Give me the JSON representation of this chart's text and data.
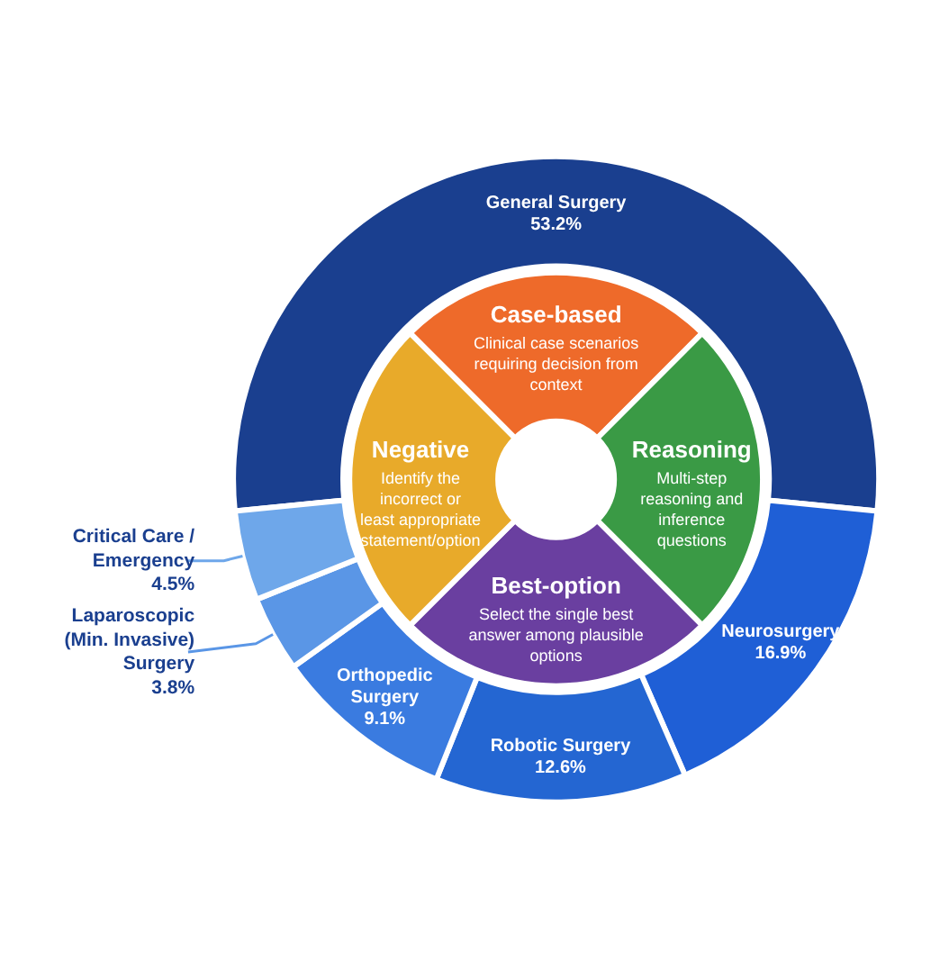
{
  "chart_data": [
    {
      "type": "donut",
      "categories": [
        "General Surgery",
        "Neurosurgery",
        "Robotic Surgery",
        "Orthopedic Surgery",
        "Laparoscopic (Min. Invasive) Surgery",
        "Critical Care / Emergency"
      ],
      "values": [
        53.2,
        16.9,
        12.6,
        9.1,
        3.8,
        4.5
      ],
      "value_labels": [
        "53.2%",
        "16.9%",
        "12.6%",
        "9.1%",
        "3.8%",
        "4.5%"
      ],
      "colors": [
        "#1a3f8f",
        "#1f5fd6",
        "#2466d2",
        "#3a7be0",
        "#5a96e6",
        "#6ea7ea"
      ]
    },
    {
      "type": "donut",
      "categories": [
        "Case-based",
        "Reasoning",
        "Best-option",
        "Negative"
      ],
      "values": [
        25,
        25,
        25,
        25
      ],
      "colors": [
        "#ee6a2a",
        "#3a9a45",
        "#6a3fa0",
        "#e8aa2a"
      ],
      "annotations": [
        "Clinical case scenarios requiring decision from context",
        "Multi-step reasoning and inference questions",
        "Select the single best answer among plausible options",
        "Identify the incorrect or least appropriate statement/option"
      ]
    }
  ]
}
